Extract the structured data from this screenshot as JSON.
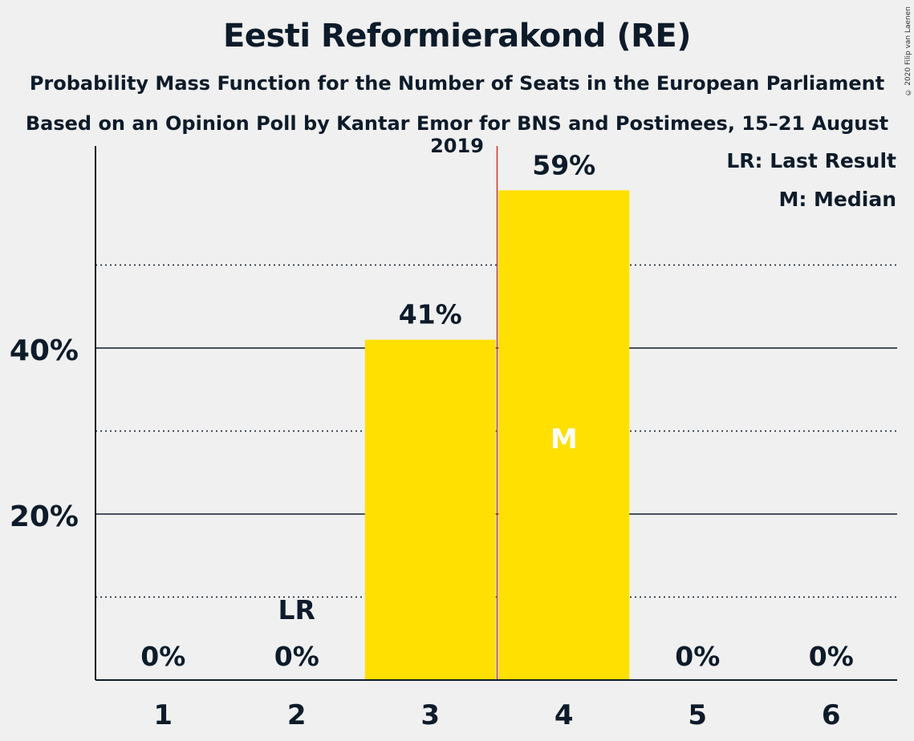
{
  "chart_data": {
    "type": "bar",
    "title": "Eesti Reformierakond (RE)",
    "subtitle": "Probability Mass Function for the Number of Seats in the European Parliament",
    "subtitle2": "Based on an Opinion Poll by Kantar Emor for BNS and Postimees, 15–21 August 2019",
    "copyright": "© 2020 Filip van Laenen",
    "categories": [
      "1",
      "2",
      "3",
      "4",
      "5",
      "6"
    ],
    "values": [
      0,
      0,
      41,
      59,
      0,
      0
    ],
    "value_labels": [
      "0%",
      "0%",
      "41%",
      "59%",
      "0%",
      "0%"
    ],
    "ylim": [
      0,
      65
    ],
    "yticks": [
      20,
      40
    ],
    "ytick_labels": [
      "20%",
      "40%"
    ],
    "minor_gridlines": [
      10,
      30,
      50
    ],
    "last_result_category": "2",
    "last_result_label": "LR",
    "median_category": "4",
    "median_label": "M",
    "legend": {
      "last_result": "LR: Last Result",
      "median": "M: Median"
    },
    "colors": {
      "bar": "#ffe000",
      "median_line": "#c0392b",
      "axis": "#0d1b2a",
      "background": "#f0f0f0"
    }
  }
}
